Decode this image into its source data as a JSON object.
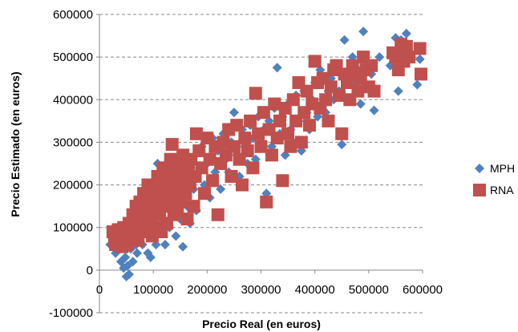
{
  "chart_data": {
    "type": "scatter",
    "title": "",
    "xlabel": "Precio Real (en euros)",
    "ylabel": "Precio Estimado (en euros)",
    "xlim": [
      0,
      600000
    ],
    "ylim": [
      -100000,
      600000
    ],
    "x_ticks": [
      "0",
      "100000",
      "200000",
      "300000",
      "400000",
      "500000",
      "600000"
    ],
    "y_ticks": [
      "-100000",
      "0",
      "100000",
      "200000",
      "300000",
      "400000",
      "500000",
      "600000"
    ],
    "grid": "horizontal dashed",
    "legend_position": "right",
    "series": [
      {
        "name": "MPH",
        "color": "#4F81BD",
        "marker": "diamond",
        "points": [
          [
            20000,
            60000
          ],
          [
            30000,
            40000
          ],
          [
            35000,
            75000
          ],
          [
            40000,
            20000
          ],
          [
            45000,
            5000
          ],
          [
            48000,
            30000
          ],
          [
            50000,
            -15000
          ],
          [
            52000,
            10000
          ],
          [
            55000,
            -10000
          ],
          [
            58000,
            50000
          ],
          [
            60000,
            90000
          ],
          [
            62000,
            20000
          ],
          [
            65000,
            110000
          ],
          [
            68000,
            60000
          ],
          [
            70000,
            40000
          ],
          [
            72000,
            140000
          ],
          [
            75000,
            80000
          ],
          [
            78000,
            100000
          ],
          [
            80000,
            60000
          ],
          [
            82000,
            170000
          ],
          [
            85000,
            120000
          ],
          [
            88000,
            90000
          ],
          [
            90000,
            40000
          ],
          [
            92000,
            150000
          ],
          [
            95000,
            30000
          ],
          [
            98000,
            100000
          ],
          [
            100000,
            180000
          ],
          [
            103000,
            120000
          ],
          [
            105000,
            60000
          ],
          [
            108000,
            250000
          ],
          [
            110000,
            90000
          ],
          [
            112000,
            140000
          ],
          [
            115000,
            200000
          ],
          [
            118000,
            110000
          ],
          [
            120000,
            150000
          ],
          [
            122000,
            60000
          ],
          [
            125000,
            230000
          ],
          [
            128000,
            170000
          ],
          [
            130000,
            100000
          ],
          [
            132000,
            190000
          ],
          [
            135000,
            250000
          ],
          [
            138000,
            130000
          ],
          [
            140000,
            210000
          ],
          [
            142000,
            80000
          ],
          [
            145000,
            160000
          ],
          [
            148000,
            240000
          ],
          [
            150000,
            120000
          ],
          [
            152000,
            200000
          ],
          [
            155000,
            55000
          ],
          [
            158000,
            180000
          ],
          [
            160000,
            260000
          ],
          [
            163000,
            150000
          ],
          [
            165000,
            210000
          ],
          [
            168000,
            110000
          ],
          [
            170000,
            240000
          ],
          [
            175000,
            190000
          ],
          [
            178000,
            270000
          ],
          [
            180000,
            140000
          ],
          [
            185000,
            230000
          ],
          [
            190000,
            290000
          ],
          [
            195000,
            200000
          ],
          [
            200000,
            250000
          ],
          [
            205000,
            170000
          ],
          [
            210000,
            310000
          ],
          [
            215000,
            230000
          ],
          [
            220000,
            280000
          ],
          [
            225000,
            190000
          ],
          [
            230000,
            320000
          ],
          [
            235000,
            260000
          ],
          [
            240000,
            230000
          ],
          [
            245000,
            300000
          ],
          [
            250000,
            370000
          ],
          [
            255000,
            270000
          ],
          [
            260000,
            220000
          ],
          [
            265000,
            330000
          ],
          [
            270000,
            290000
          ],
          [
            275000,
            250000
          ],
          [
            280000,
            340000
          ],
          [
            285000,
            310000
          ],
          [
            290000,
            260000
          ],
          [
            295000,
            360000
          ],
          [
            300000,
            300000
          ],
          [
            305000,
            330000
          ],
          [
            310000,
            180000
          ],
          [
            315000,
            350000
          ],
          [
            320000,
            290000
          ],
          [
            325000,
            380000
          ],
          [
            330000,
            475000
          ],
          [
            335000,
            320000
          ],
          [
            340000,
            360000
          ],
          [
            345000,
            270000
          ],
          [
            350000,
            390000
          ],
          [
            355000,
            330000
          ],
          [
            360000,
            300000
          ],
          [
            365000,
            410000
          ],
          [
            370000,
            350000
          ],
          [
            375000,
            280000
          ],
          [
            380000,
            420000
          ],
          [
            385000,
            370000
          ],
          [
            390000,
            330000
          ],
          [
            395000,
            400000
          ],
          [
            400000,
            440000
          ],
          [
            405000,
            360000
          ],
          [
            410000,
            470000
          ],
          [
            415000,
            390000
          ],
          [
            420000,
            370000
          ],
          [
            425000,
            420000
          ],
          [
            430000,
            450000
          ],
          [
            435000,
            400000
          ],
          [
            440000,
            480000
          ],
          [
            445000,
            420000
          ],
          [
            450000,
            295000
          ],
          [
            455000,
            540000
          ],
          [
            460000,
            460000
          ],
          [
            465000,
            400000
          ],
          [
            470000,
            500000
          ],
          [
            475000,
            440000
          ],
          [
            480000,
            470000
          ],
          [
            485000,
            390000
          ],
          [
            490000,
            560000
          ],
          [
            495000,
            430000
          ],
          [
            500000,
            480000
          ],
          [
            505000,
            460000
          ],
          [
            510000,
            375000
          ],
          [
            520000,
            500000
          ],
          [
            540000,
            480000
          ],
          [
            550000,
            545000
          ],
          [
            555000,
            420000
          ],
          [
            560000,
            540000
          ],
          [
            565000,
            510000
          ],
          [
            570000,
            555000
          ],
          [
            575000,
            500000
          ],
          [
            590000,
            435000
          ],
          [
            595000,
            495000
          ]
        ]
      },
      {
        "name": "RNA",
        "color": "#C0504D",
        "marker": "square",
        "points": [
          [
            25000,
            90000
          ],
          [
            28000,
            70000
          ],
          [
            30000,
            60000
          ],
          [
            32000,
            85000
          ],
          [
            35000,
            95000
          ],
          [
            38000,
            65000
          ],
          [
            40000,
            80000
          ],
          [
            42000,
            55000
          ],
          [
            45000,
            100000
          ],
          [
            48000,
            70000
          ],
          [
            50000,
            90000
          ],
          [
            52000,
            60000
          ],
          [
            55000,
            110000
          ],
          [
            58000,
            75000
          ],
          [
            60000,
            95000
          ],
          [
            62000,
            130000
          ],
          [
            65000,
            80000
          ],
          [
            68000,
            150000
          ],
          [
            70000,
            100000
          ],
          [
            72000,
            70000
          ],
          [
            75000,
            160000
          ],
          [
            78000,
            120000
          ],
          [
            80000,
            90000
          ],
          [
            82000,
            180000
          ],
          [
            85000,
            140000
          ],
          [
            88000,
            110000
          ],
          [
            90000,
            200000
          ],
          [
            92000,
            160000
          ],
          [
            95000,
            120000
          ],
          [
            98000,
            80000
          ],
          [
            100000,
            190000
          ],
          [
            103000,
            140000
          ],
          [
            105000,
            100000
          ],
          [
            108000,
            220000
          ],
          [
            110000,
            170000
          ],
          [
            112000,
            130000
          ],
          [
            115000,
            90000
          ],
          [
            118000,
            240000
          ],
          [
            120000,
            190000
          ],
          [
            122000,
            150000
          ],
          [
            125000,
            110000
          ],
          [
            128000,
            210000
          ],
          [
            130000,
            170000
          ],
          [
            132000,
            260000
          ],
          [
            135000,
            295000
          ],
          [
            138000,
            130000
          ],
          [
            140000,
            230000
          ],
          [
            142000,
            180000
          ],
          [
            145000,
            140000
          ],
          [
            148000,
            250000
          ],
          [
            150000,
            200000
          ],
          [
            152000,
            160000
          ],
          [
            155000,
            270000
          ],
          [
            158000,
            220000
          ],
          [
            160000,
            180000
          ],
          [
            163000,
            120000
          ],
          [
            165000,
            240000
          ],
          [
            168000,
            200000
          ],
          [
            170000,
            260000
          ],
          [
            175000,
            150000
          ],
          [
            178000,
            220000
          ],
          [
            180000,
            320000
          ],
          [
            185000,
            280000
          ],
          [
            190000,
            240000
          ],
          [
            195000,
            180000
          ],
          [
            200000,
            310000
          ],
          [
            205000,
            260000
          ],
          [
            210000,
            210000
          ],
          [
            215000,
            290000
          ],
          [
            220000,
            130000
          ],
          [
            225000,
            250000
          ],
          [
            230000,
            300000
          ],
          [
            235000,
            270000
          ],
          [
            240000,
            330000
          ],
          [
            245000,
            220000
          ],
          [
            250000,
            290000
          ],
          [
            255000,
            340000
          ],
          [
            260000,
            260000
          ],
          [
            265000,
            200000
          ],
          [
            270000,
            310000
          ],
          [
            275000,
            280000
          ],
          [
            280000,
            350000
          ],
          [
            285000,
            240000
          ],
          [
            290000,
            415000
          ],
          [
            295000,
            320000
          ],
          [
            300000,
            290000
          ],
          [
            305000,
            370000
          ],
          [
            310000,
            160000
          ],
          [
            315000,
            330000
          ],
          [
            320000,
            270000
          ],
          [
            325000,
            390000
          ],
          [
            330000,
            310000
          ],
          [
            335000,
            350000
          ],
          [
            340000,
            210000
          ],
          [
            345000,
            380000
          ],
          [
            350000,
            320000
          ],
          [
            355000,
            290000
          ],
          [
            360000,
            400000
          ],
          [
            365000,
            350000
          ],
          [
            370000,
            440000
          ],
          [
            375000,
            300000
          ],
          [
            380000,
            370000
          ],
          [
            385000,
            420000
          ],
          [
            390000,
            340000
          ],
          [
            395000,
            390000
          ],
          [
            400000,
            490000
          ],
          [
            405000,
            440000
          ],
          [
            410000,
            380000
          ],
          [
            415000,
            450000
          ],
          [
            420000,
            400000
          ],
          [
            425000,
            350000
          ],
          [
            430000,
            430000
          ],
          [
            435000,
            470000
          ],
          [
            440000,
            480000
          ],
          [
            445000,
            410000
          ],
          [
            450000,
            320000
          ],
          [
            455000,
            460000
          ],
          [
            460000,
            440000
          ],
          [
            465000,
            400000
          ],
          [
            470000,
            480000
          ],
          [
            475000,
            460000
          ],
          [
            480000,
            420000
          ],
          [
            485000,
            450000
          ],
          [
            490000,
            500000
          ],
          [
            495000,
            470000
          ],
          [
            500000,
            430000
          ],
          [
            505000,
            480000
          ],
          [
            510000,
            420000
          ],
          [
            545000,
            510000
          ],
          [
            550000,
            500000
          ],
          [
            555000,
            470000
          ],
          [
            560000,
            530000
          ],
          [
            565000,
            490000
          ],
          [
            570000,
            525000
          ],
          [
            575000,
            500000
          ],
          [
            595000,
            520000
          ],
          [
            597000,
            460000
          ]
        ]
      }
    ]
  }
}
